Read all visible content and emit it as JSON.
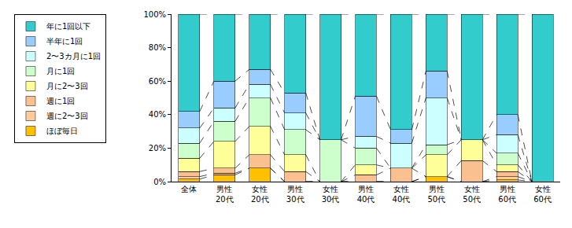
{
  "chart_data": {
    "type": "bar",
    "stacked": true,
    "grid": false,
    "legend": "left",
    "categories": [
      "全体",
      "男性 20代",
      "女性 20代",
      "男性 30代",
      "女性 30代",
      "男性 40代",
      "女性 40代",
      "男性 50代",
      "女性 50代",
      "男性 60代",
      "女性 60代"
    ],
    "ylim": [
      0,
      100
    ],
    "yticks": [
      {
        "value": 0,
        "label": "0%"
      },
      {
        "value": 20,
        "label": "20%"
      },
      {
        "value": 40,
        "label": "40%"
      },
      {
        "value": 60,
        "label": "60%"
      },
      {
        "value": 80,
        "label": "80%"
      },
      {
        "value": 100,
        "label": "100%"
      }
    ],
    "series": [
      {
        "name": "ほぼ毎日",
        "color": "#FFC000",
        "values": [
          1.5,
          4,
          8,
          0,
          0,
          0,
          0,
          3,
          0,
          1,
          0
        ]
      },
      {
        "name": "週に2〜3回",
        "color": "#FFCC99",
        "values": [
          1.5,
          1,
          0,
          0,
          0,
          0,
          0,
          0,
          0,
          2,
          0
        ]
      },
      {
        "name": "週に1回",
        "color": "#FAC090",
        "values": [
          3,
          3,
          8,
          6,
          0,
          4,
          8,
          0,
          12.5,
          3,
          0
        ]
      },
      {
        "name": "月に2〜3回",
        "color": "#FFFF99",
        "values": [
          8,
          16,
          17,
          10,
          0,
          6,
          0,
          13,
          12.5,
          4,
          0
        ]
      },
      {
        "name": "月に1回",
        "color": "#CCFFCC",
        "values": [
          9,
          12,
          17,
          15,
          25,
          10,
          0,
          6,
          0,
          7,
          0
        ]
      },
      {
        "name": "2〜3カ月に1回",
        "color": "#CCFFFF",
        "values": [
          9,
          8,
          8,
          10,
          0,
          7,
          15,
          28,
          0,
          11,
          0
        ]
      },
      {
        "name": "半年に1回",
        "color": "#99CCFF",
        "values": [
          10,
          16,
          9,
          12,
          0,
          24,
          8,
          16,
          0,
          12,
          0
        ]
      },
      {
        "name": "年に1回以下",
        "color": "#33CCCC",
        "values": [
          58,
          40,
          33,
          47,
          75,
          49,
          69,
          34,
          75,
          60,
          100
        ]
      }
    ]
  }
}
